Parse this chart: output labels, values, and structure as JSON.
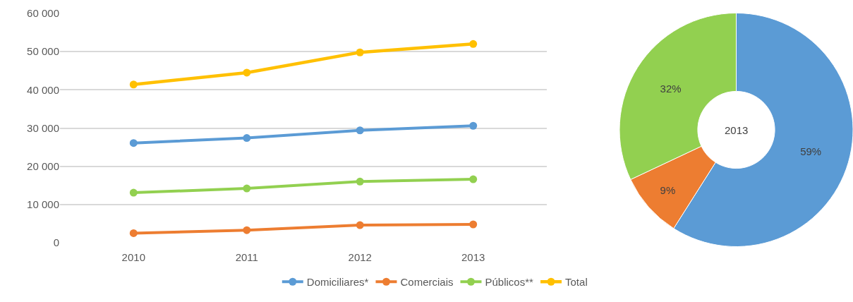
{
  "chart_data": [
    {
      "type": "line",
      "categories": [
        "2010",
        "2011",
        "2012",
        "2013"
      ],
      "series": [
        {
          "name": "Domiciliares*",
          "color": "#5b9bd5",
          "values": [
            26100,
            27400,
            29400,
            30600
          ]
        },
        {
          "name": "Comerciais",
          "color": "#ed7d31",
          "values": [
            2500,
            3300,
            4600,
            4800
          ]
        },
        {
          "name": "Públicos**",
          "color": "#92d050",
          "values": [
            13100,
            14200,
            16000,
            16600
          ]
        },
        {
          "name": "Total",
          "color": "#ffc000",
          "values": [
            41400,
            44500,
            49800,
            52000
          ]
        }
      ],
      "ylim": [
        0,
        60000
      ],
      "yticks": [
        {
          "value": 0,
          "label": "0"
        },
        {
          "value": 10000,
          "label": "10 000"
        },
        {
          "value": 20000,
          "label": "20 000"
        },
        {
          "value": 30000,
          "label": "30 000"
        },
        {
          "value": 40000,
          "label": "40 000"
        },
        {
          "value": 50000,
          "label": "50 000"
        },
        {
          "value": 60000,
          "label": "60 000"
        }
      ],
      "grid": "y",
      "legend": "bottom",
      "marker": "circle",
      "line_style": "solid"
    },
    {
      "type": "donut",
      "categories": [
        null,
        null,
        null
      ],
      "values": [
        59,
        9,
        32
      ],
      "colors": [
        "#5b9bd5",
        "#ed7d31",
        "#92d050"
      ],
      "value_labels": [
        "59%",
        "9%",
        "32%"
      ],
      "annotations": [
        "2013"
      ]
    }
  ]
}
